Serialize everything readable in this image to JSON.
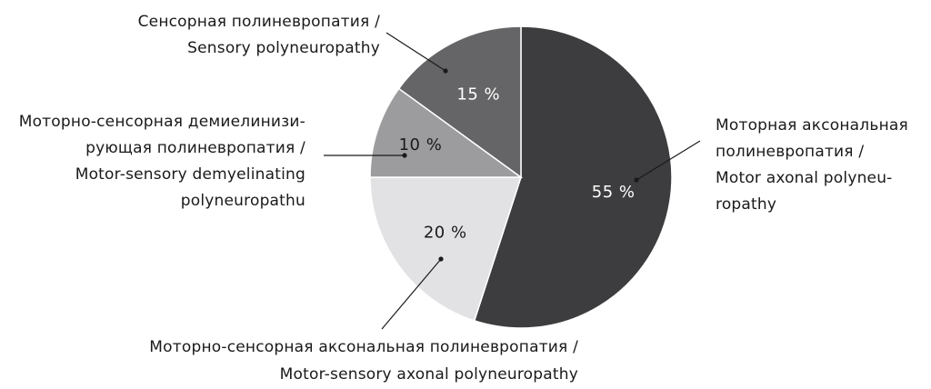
{
  "chart_data": {
    "type": "pie",
    "slices": [
      {
        "value": 55,
        "value_label": "55 %",
        "label_lines": [
          "Моторная аксональная",
          "полиневропатия /",
          "Motor axonal polyneu-",
          "ropathy"
        ],
        "color": "#3d3d3f",
        "text_color": "#ffffff"
      },
      {
        "value": 20,
        "value_label": "20 %",
        "label_lines": [
          "Моторно-сенсорная аксональная полиневропатия /",
          "Motor-sensory axonal polyneuropathy"
        ],
        "color": "#e2e2e4",
        "text_color": "#1a1a1a"
      },
      {
        "value": 10,
        "value_label": "10 %",
        "label_lines": [
          "Моторно-сенсорная демиелинизи-",
          "рующая полиневропатия /",
          "Motor-sensory demyelinating",
          "polyneuropathu"
        ],
        "color": "#9c9c9e",
        "text_color": "#1a1a1a"
      },
      {
        "value": 15,
        "value_label": "15 %",
        "label_lines": [
          "Сенсорная полиневропатия /",
          "Sensory polyneuropathy"
        ],
        "color": "#656567",
        "text_color": "#ffffff"
      }
    ]
  }
}
